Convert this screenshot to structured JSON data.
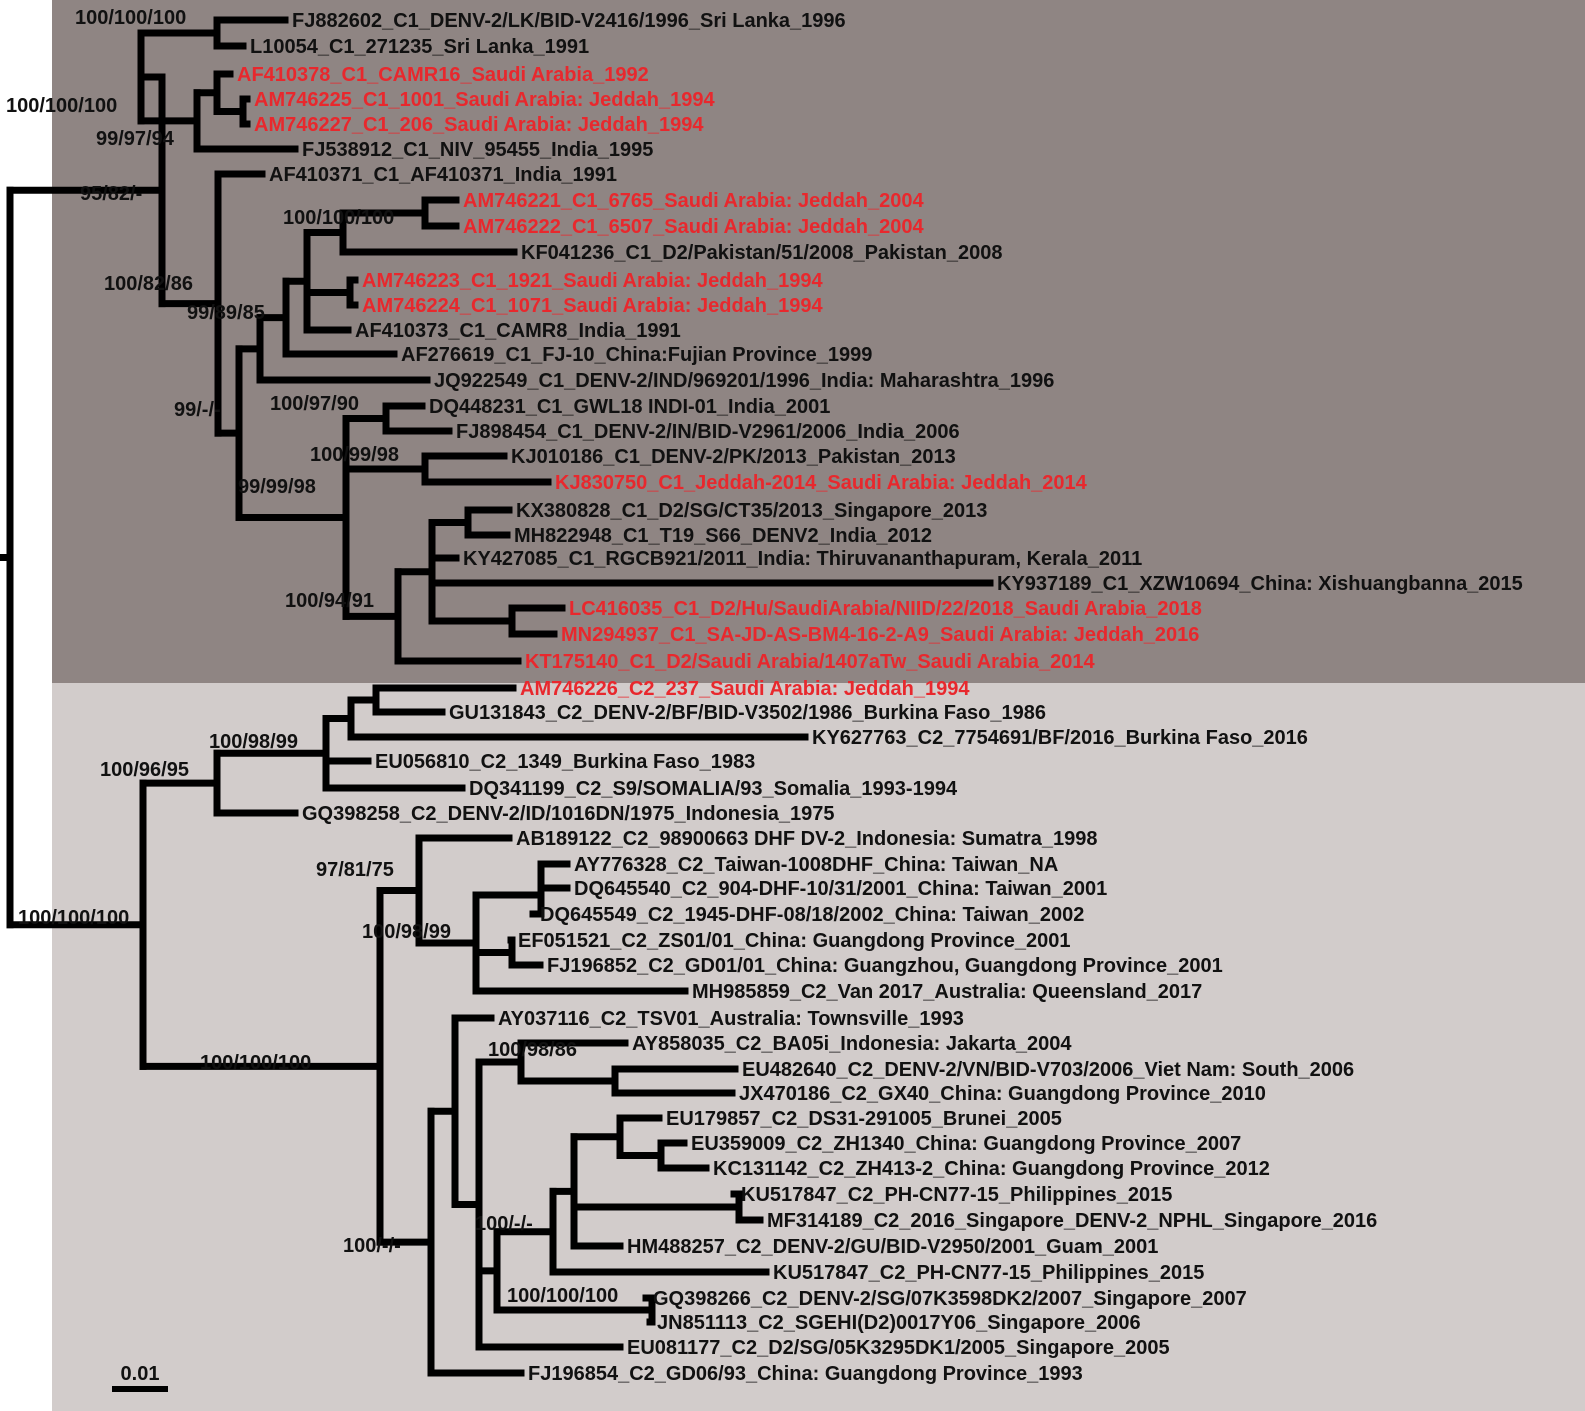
{
  "colors": {
    "clade1_background": "#8f8583",
    "clade2_background": "#d2cccb",
    "branch": "#000000",
    "label_default": "#111111",
    "label_saudi": "#e8282d"
  },
  "taxa": [
    {
      "label": "FJ882602_C1_DENV-2/LK/BID-V2416/1996_Sri Lanka_1996",
      "highlight": false
    },
    {
      "label": "L10054_C1_271235_Sri Lanka_1991",
      "highlight": false
    },
    {
      "label": "AF410378_C1_CAMR16_Saudi Arabia_1992",
      "highlight": true
    },
    {
      "label": "AM746225_C1_1001_Saudi Arabia: Jeddah_1994",
      "highlight": true
    },
    {
      "label": "AM746227_C1_206_Saudi Arabia: Jeddah_1994",
      "highlight": true
    },
    {
      "label": "FJ538912_C1_NIV_95455_India_1995",
      "highlight": false
    },
    {
      "label": "AF410371_C1_AF410371_India_1991",
      "highlight": false
    },
    {
      "label": "AM746221_C1_6765_Saudi Arabia: Jeddah_2004",
      "highlight": true
    },
    {
      "label": "AM746222_C1_6507_Saudi Arabia: Jeddah_2004",
      "highlight": true
    },
    {
      "label": "KF041236_C1_D2/Pakistan/51/2008_Pakistan_2008",
      "highlight": false
    },
    {
      "label": "AM746223_C1_1921_Saudi Arabia: Jeddah_1994",
      "highlight": true
    },
    {
      "label": "AM746224_C1_1071_Saudi Arabia: Jeddah_1994",
      "highlight": true
    },
    {
      "label": "AF410373_C1_CAMR8_India_1991",
      "highlight": false
    },
    {
      "label": "AF276619_C1_FJ-10_China:Fujian Province_1999",
      "highlight": false
    },
    {
      "label": "JQ922549_C1_DENV-2/IND/969201/1996_India: Maharashtra_1996",
      "highlight": false
    },
    {
      "label": "DQ448231_C1_GWL18 INDI-01_India_2001",
      "highlight": false
    },
    {
      "label": "FJ898454_C1_DENV-2/IN/BID-V2961/2006_India_2006",
      "highlight": false
    },
    {
      "label": "KJ010186_C1_DENV-2/PK/2013_Pakistan_2013",
      "highlight": false
    },
    {
      "label": "KJ830750_C1_Jeddah-2014_Saudi Arabia: Jeddah_2014",
      "highlight": true
    },
    {
      "label": "KX380828_C1_D2/SG/CT35/2013_Singapore_2013",
      "highlight": false
    },
    {
      "label": "MH822948_C1_T19_S66_DENV2_India_2012",
      "highlight": false
    },
    {
      "label": "KY427085_C1_RGCB921/2011_India: Thiruvananthapuram, Kerala_2011",
      "highlight": false
    },
    {
      "label": "KY937189_C1_XZW10694_China: Xishuangbanna_2015",
      "highlight": false
    },
    {
      "label": "LC416035_C1_D2/Hu/SaudiArabia/NIID/22/2018_Saudi Arabia_2018",
      "highlight": true
    },
    {
      "label": "MN294937_C1_SA-JD-AS-BM4-16-2-A9_Saudi Arabia: Jeddah_2016",
      "highlight": true
    },
    {
      "label": "KT175140_C1_D2/Saudi Arabia/1407aTw_Saudi Arabia_2014",
      "highlight": true
    },
    {
      "label": "AM746226_C2_237_Saudi Arabia: Jeddah_1994",
      "highlight": true
    },
    {
      "label": "GU131843_C2_DENV-2/BF/BID-V3502/1986_Burkina Faso_1986",
      "highlight": false
    },
    {
      "label": "KY627763_C2_7754691/BF/2016_Burkina Faso_2016",
      "highlight": false
    },
    {
      "label": "EU056810_C2_1349_Burkina Faso_1983",
      "highlight": false
    },
    {
      "label": "DQ341199_C2_S9/SOMALIA/93_Somalia_1993-1994",
      "highlight": false
    },
    {
      "label": "GQ398258_C2_DENV-2/ID/1016DN/1975_Indonesia_1975",
      "highlight": false
    },
    {
      "label": "AB189122_C2_98900663 DHF DV-2_Indonesia: Sumatra_1998",
      "highlight": false
    },
    {
      "label": "AY776328_C2_Taiwan-1008DHF_China: Taiwan_NA",
      "highlight": false
    },
    {
      "label": "DQ645540_C2_904-DHF-10/31/2001_China: Taiwan_2001",
      "highlight": false
    },
    {
      "label": "DQ645549_C2_1945-DHF-08/18/2002_China: Taiwan_2002",
      "highlight": false
    },
    {
      "label": "EF051521_C2_ZS01/01_China: Guangdong Province_2001",
      "highlight": false
    },
    {
      "label": "FJ196852_C2_GD01/01_China: Guangzhou, Guangdong Province_2001",
      "highlight": false
    },
    {
      "label": "MH985859_C2_Van 2017_Australia: Queensland_2017",
      "highlight": false
    },
    {
      "label": "AY037116_C2_TSV01_Australia: Townsville_1993",
      "highlight": false
    },
    {
      "label": "AY858035_C2_BA05i_Indonesia: Jakarta_2004",
      "highlight": false
    },
    {
      "label": "EU482640_C2_DENV-2/VN/BID-V703/2006_Viet Nam: South_2006",
      "highlight": false
    },
    {
      "label": "JX470186_C2_GX40_China: Guangdong Province_2010",
      "highlight": false
    },
    {
      "label": "EU179857_C2_DS31-291005_Brunei_2005",
      "highlight": false
    },
    {
      "label": "EU359009_C2_ZH1340_China: Guangdong Province_2007",
      "highlight": false
    },
    {
      "label": "KC131142_C2_ZH413-2_China: Guangdong Province_2012",
      "highlight": false
    },
    {
      "label": "KU517847_C2_PH-CN77-15_Philippines_2015",
      "highlight": false
    },
    {
      "label": "MF314189_C2_2016_Singapore_DENV-2_NPHL_Singapore_2016",
      "highlight": false
    },
    {
      "label": "HM488257_C2_DENV-2/GU/BID-V2950/2001_Guam_2001",
      "highlight": false
    },
    {
      "label": "KU517847_C2_PH-CN77-15_Philippines_2015",
      "highlight": false
    },
    {
      "label": "GQ398266_C2_DENV-2/SG/07K3598DK2/2007_Singapore_2007",
      "highlight": false
    },
    {
      "label": "JN851113_C2_SGEHI(D2)0017Y06_Singapore_2006",
      "highlight": false
    },
    {
      "label": "EU081177_C2_D2/SG/05K3295DK1/2005_Singapore_2005",
      "highlight": false
    },
    {
      "label": "FJ196854_C2_GD06/93_China: Guangdong Province_1993",
      "highlight": false
    }
  ],
  "support_values": [
    "100/100/100",
    "100/100/100",
    "99/97/94",
    "95/82/-",
    "100/100/100",
    "100/82/86",
    "99/89/85",
    "99/-/-",
    "100/97/90",
    "100/99/98",
    "99/99/98",
    "100/94/91",
    "100/98/99",
    "100/96/95",
    "97/81/75",
    "100/98/99",
    "100/100/100",
    "100/100/100",
    "100/98/86",
    "100/-/-",
    "100/-/-",
    "100/100/100"
  ],
  "scale_bar": {
    "label": "0.01"
  }
}
